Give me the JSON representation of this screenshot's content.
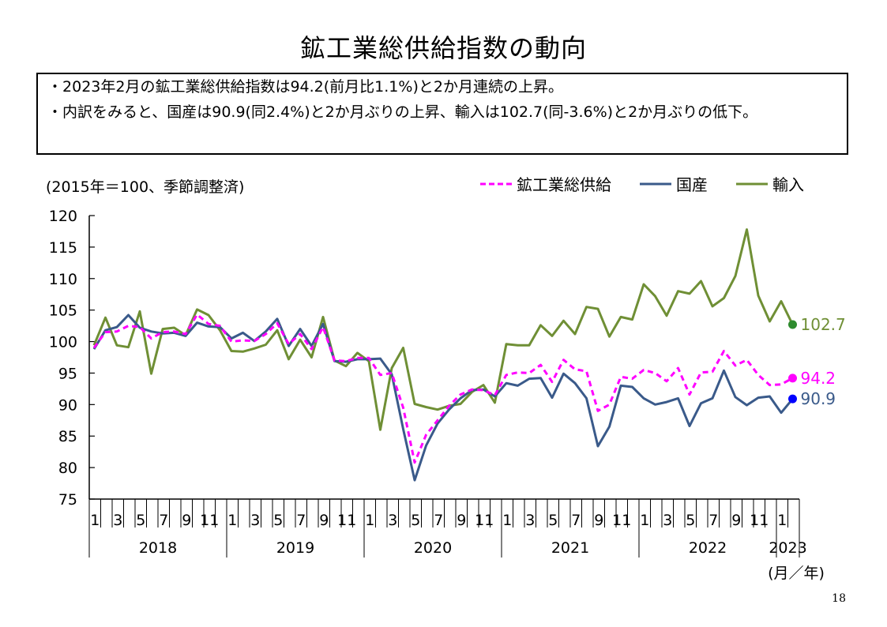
{
  "page_title": "鉱工業総供給指数の動向",
  "summary": {
    "line1": "2023年2月の鉱工業総供給指数は94.2(前月比1.1%)と2か月連続の上昇。",
    "line2": "内訳をみると、国産は90.9(同2.4%)と2か月ぶりの上昇、輸入は102.7(同-3.6%)と2か月ぶりの低下。",
    "bullet": "・"
  },
  "page_number": "18",
  "colors": {
    "total": "#ff00ff",
    "domestic": "#3a5a8a",
    "import": "#6f8f35",
    "total_dot": "#ff00ff",
    "domestic_dot": "#0000ff",
    "import_dot": "#2e8b2e"
  },
  "chart_data": {
    "type": "line",
    "unit_note": "(2015年＝100、季節調整済)",
    "xlabel": "(月／年)",
    "ylim": [
      75,
      120
    ],
    "yticks": [
      75,
      80,
      85,
      90,
      95,
      100,
      105,
      110,
      115,
      120
    ],
    "month_labels": [
      "1",
      "3",
      "5",
      "7",
      "9",
      "11"
    ],
    "years": [
      "2018",
      "2019",
      "2020",
      "2021",
      "2022",
      "2023"
    ],
    "last_year_month_labels": [
      "1"
    ],
    "series": [
      {
        "name": "鉱工業総供給",
        "key": "total",
        "end_label": "94.2",
        "values": [
          99.0,
          101.5,
          101.6,
          102.5,
          102.3,
          100.5,
          101.5,
          101.6,
          101.2,
          104.3,
          102.8,
          102.5,
          100.0,
          100.2,
          100.1,
          101.2,
          102.9,
          99.6,
          101.2,
          98.8,
          102.3,
          97.0,
          96.9,
          97.4,
          97.4,
          94.7,
          95.0,
          89.5,
          80.8,
          85.2,
          87.5,
          89.8,
          91.6,
          92.4,
          92.3,
          91.5,
          94.7,
          95.1,
          95.0,
          96.3,
          93.6,
          97.1,
          95.6,
          95.3,
          89.0,
          90.0,
          94.4,
          94.1,
          95.5,
          95.0,
          93.7,
          95.8,
          91.6,
          95.1,
          95.2,
          98.5,
          96.2,
          97.1,
          94.7,
          93.1,
          93.2,
          94.2
        ]
      },
      {
        "name": "国産",
        "key": "domestic",
        "end_label": "90.9",
        "values": [
          98.8,
          101.8,
          102.3,
          104.2,
          102.2,
          101.6,
          101.3,
          101.4,
          100.9,
          103.0,
          102.4,
          102.3,
          100.5,
          101.4,
          100.1,
          101.6,
          103.6,
          99.3,
          102.0,
          99.3,
          102.8,
          96.9,
          96.8,
          97.2,
          97.2,
          97.3,
          94.8,
          86.1,
          78.0,
          83.5,
          87.0,
          89.2,
          91.0,
          92.3,
          92.4,
          91.3,
          93.4,
          93.0,
          94.1,
          94.2,
          91.1,
          94.9,
          93.4,
          91.0,
          83.4,
          86.5,
          93.0,
          92.8,
          91.0,
          90.0,
          90.4,
          91.0,
          86.6,
          90.2,
          91.0,
          95.4,
          91.2,
          89.9,
          91.1,
          91.3,
          88.7,
          90.9
        ]
      },
      {
        "name": "輸入",
        "key": "import",
        "end_label": "102.7",
        "values": [
          99.4,
          103.8,
          99.4,
          99.1,
          104.8,
          94.9,
          102.0,
          102.2,
          101.0,
          105.1,
          104.2,
          101.8,
          98.5,
          98.4,
          98.9,
          99.5,
          101.8,
          97.2,
          100.3,
          97.5,
          103.9,
          97.0,
          96.1,
          98.2,
          96.9,
          86.0,
          95.8,
          99.0,
          90.1,
          89.6,
          89.2,
          89.8,
          90.1,
          92.0,
          93.1,
          90.3,
          99.6,
          99.4,
          99.4,
          102.6,
          100.9,
          103.3,
          101.2,
          105.5,
          105.2,
          100.8,
          103.9,
          103.5,
          109.1,
          107.2,
          104.1,
          108.0,
          107.6,
          109.6,
          105.6,
          106.9,
          110.4,
          117.8,
          107.3,
          103.2,
          106.4,
          102.7
        ]
      }
    ]
  }
}
